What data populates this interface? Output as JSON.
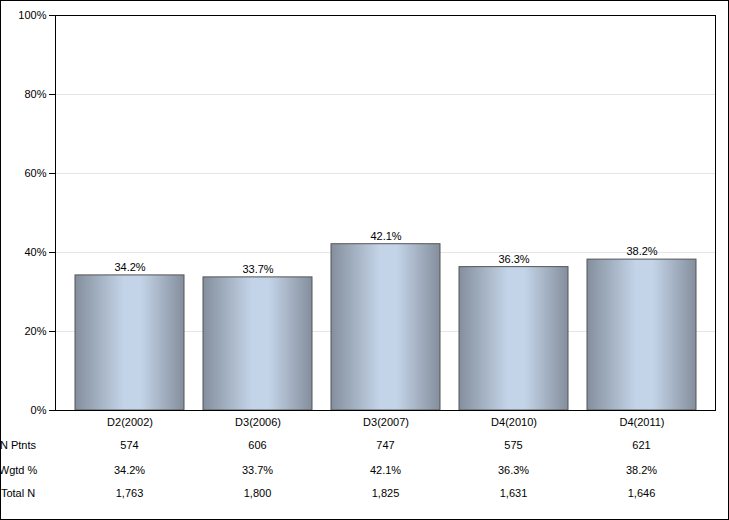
{
  "chart_data": {
    "type": "bar",
    "categories": [
      "D2(2002)",
      "D3(2006)",
      "D3(2007)",
      "D4(2010)",
      "D4(2011)"
    ],
    "values": [
      34.2,
      33.7,
      42.1,
      36.3,
      38.2
    ],
    "value_labels": [
      "34.2%",
      "33.7%",
      "42.1%",
      "36.3%",
      "38.2%"
    ],
    "data_labels": true,
    "color": "#c4d4e8",
    "ylim": [
      0,
      100
    ],
    "yticks": [
      {
        "value": 0,
        "label": "0%"
      },
      {
        "value": 20,
        "label": "20%"
      },
      {
        "value": 40,
        "label": "40%"
      },
      {
        "value": 60,
        "label": "60%"
      },
      {
        "value": 80,
        "label": "80%"
      },
      {
        "value": 100,
        "label": "100%"
      }
    ],
    "grid": true,
    "table": {
      "rows": [
        {
          "label": "N Ptnts",
          "values": [
            "574",
            "606",
            "747",
            "575",
            "621"
          ]
        },
        {
          "label": "Wgtd %",
          "values": [
            "34.2%",
            "33.7%",
            "42.1%",
            "36.3%",
            "38.2%"
          ]
        },
        {
          "label": "Total N",
          "values": [
            "1,763",
            "1,800",
            "1,825",
            "1,631",
            "1,646"
          ]
        }
      ]
    }
  }
}
